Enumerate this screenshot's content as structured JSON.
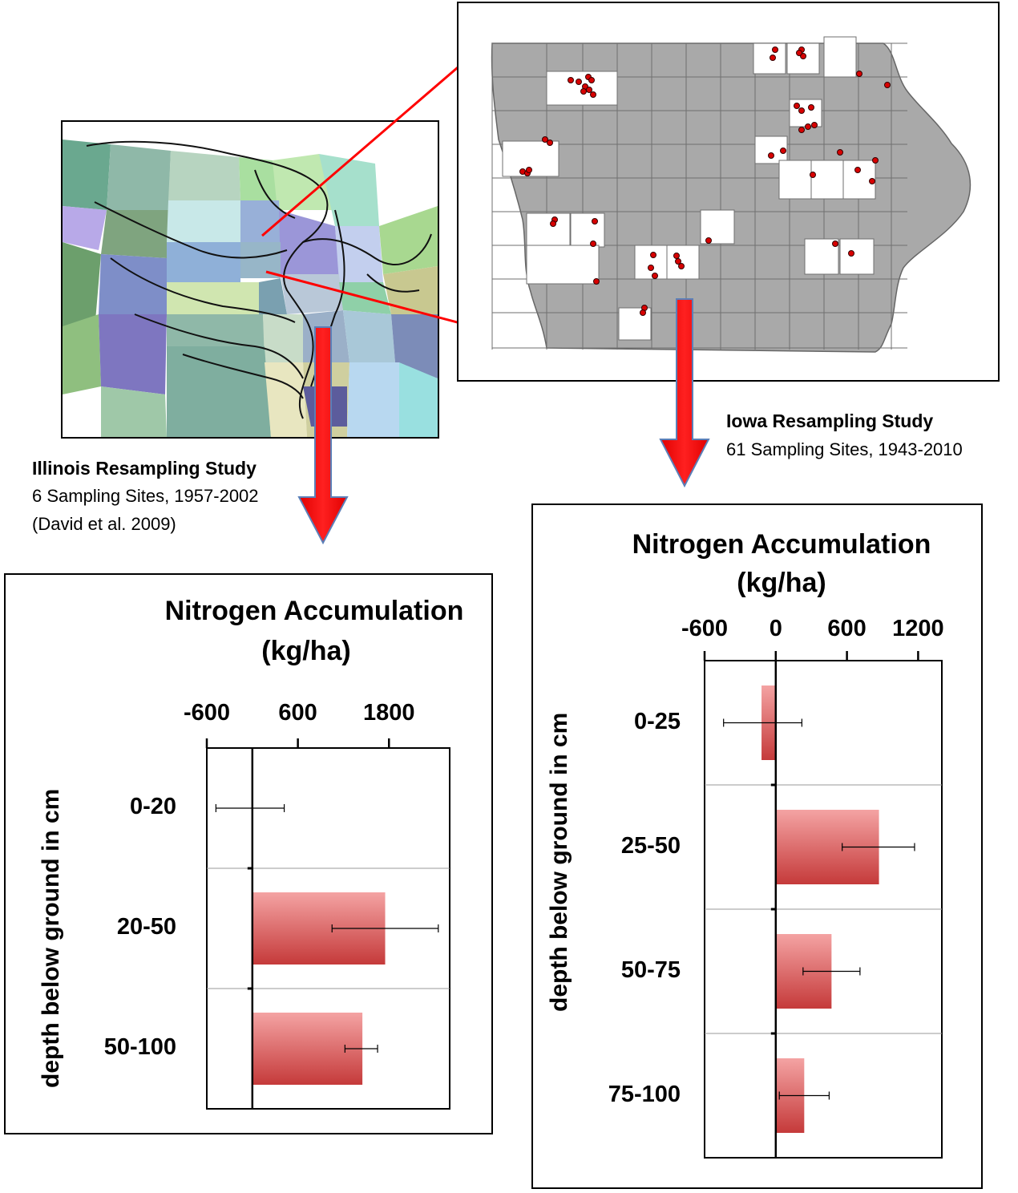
{
  "illinois": {
    "title": "Illinois Resampling Study",
    "line1": "6 Sampling Sites, 1957-2002",
    "line2": "(David et al. 2009)"
  },
  "iowa": {
    "title": "Iowa Resampling Study",
    "line1": "61 Sampling Sites, 1943-2010"
  },
  "colors": {
    "bar_top": "#f4a3a3",
    "bar_bottom": "#c53a3a",
    "arrow": "#ff0000",
    "arrow_edge": "#5b7fb8",
    "callout_line": "#ff0000",
    "iowa_county": "#a9a9a9",
    "sample_dot": "#d80000"
  },
  "chart_data": [
    {
      "type": "bar",
      "orientation": "horizontal",
      "title": "Nitrogen Accumulation (kg/ha)",
      "title_line1": "Nitrogen Accumulation",
      "title_line2": "(kg/ha)",
      "ylabel": "depth below ground in cm",
      "categories": [
        "0-20",
        "20-50",
        "50-100"
      ],
      "values": [
        0,
        1750,
        1450
      ],
      "error_low": [
        -480,
        1050,
        1220
      ],
      "error_high": [
        420,
        2450,
        1650
      ],
      "xlim": [
        -600,
        2600
      ],
      "xticks": [
        -600,
        600,
        1800
      ],
      "xtick_labels": [
        "-600",
        "600",
        "1800"
      ],
      "zero_line": 0,
      "grid": "horizontal separators between categories"
    },
    {
      "type": "bar",
      "orientation": "horizontal",
      "title": "Nitrogen Accumulation (kg/ha)",
      "title_line1": "Nitrogen Accumulation",
      "title_line2": "(kg/ha)",
      "ylabel": "depth below ground in cm",
      "categories": [
        "0-25",
        "25-50",
        "50-75",
        "75-100"
      ],
      "values": [
        -120,
        870,
        470,
        240
      ],
      "error_low": [
        -440,
        560,
        230,
        30
      ],
      "error_high": [
        220,
        1170,
        710,
        450
      ],
      "xlim": [
        -600,
        1400
      ],
      "xticks": [
        -600,
        0,
        600,
        1200
      ],
      "xtick_labels": [
        "-600",
        "0",
        "600",
        "1200"
      ],
      "zero_line": 0,
      "grid": "horizontal separators between categories"
    }
  ]
}
